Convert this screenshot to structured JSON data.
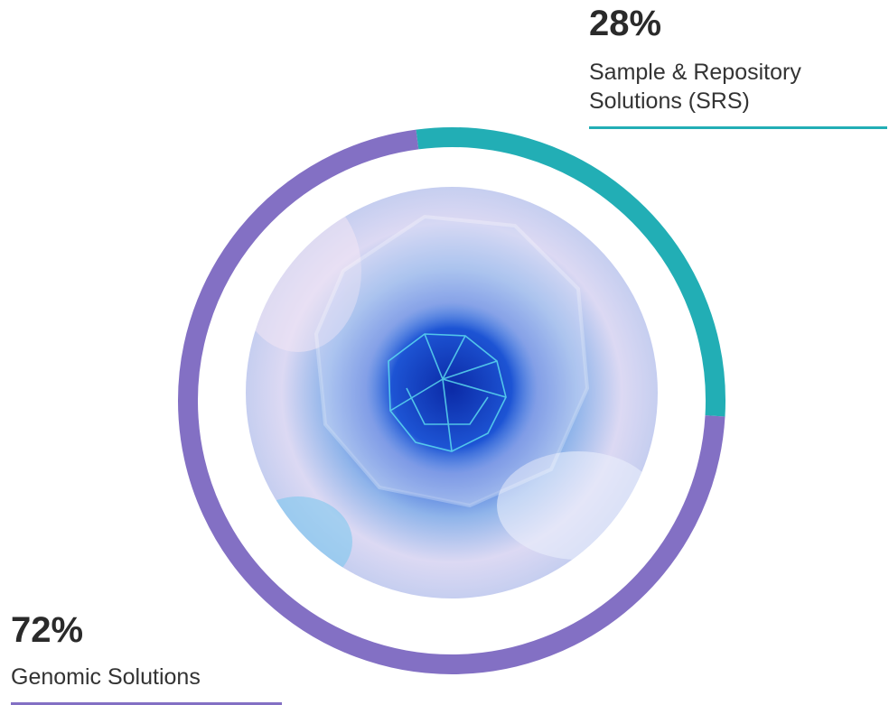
{
  "chart_data": {
    "type": "pie",
    "style": "donut",
    "categories": [
      "Sample & Repository Solutions (SRS)",
      "Genomic Solutions"
    ],
    "values": [
      28,
      72
    ],
    "value_labels": [
      "28%",
      "72%"
    ],
    "colors": [
      "#22aeb5",
      "#8370c4"
    ],
    "center": "photo of a blue cell structure",
    "legend": "callouts"
  },
  "callouts": {
    "srs": {
      "percent": "28%",
      "label_line1": "Sample & Repository",
      "label_line2": "Solutions (SRS)",
      "color": "#22aeb5"
    },
    "genomic": {
      "percent": "72%",
      "label": "Genomic Solutions",
      "color": "#8370c4"
    }
  }
}
